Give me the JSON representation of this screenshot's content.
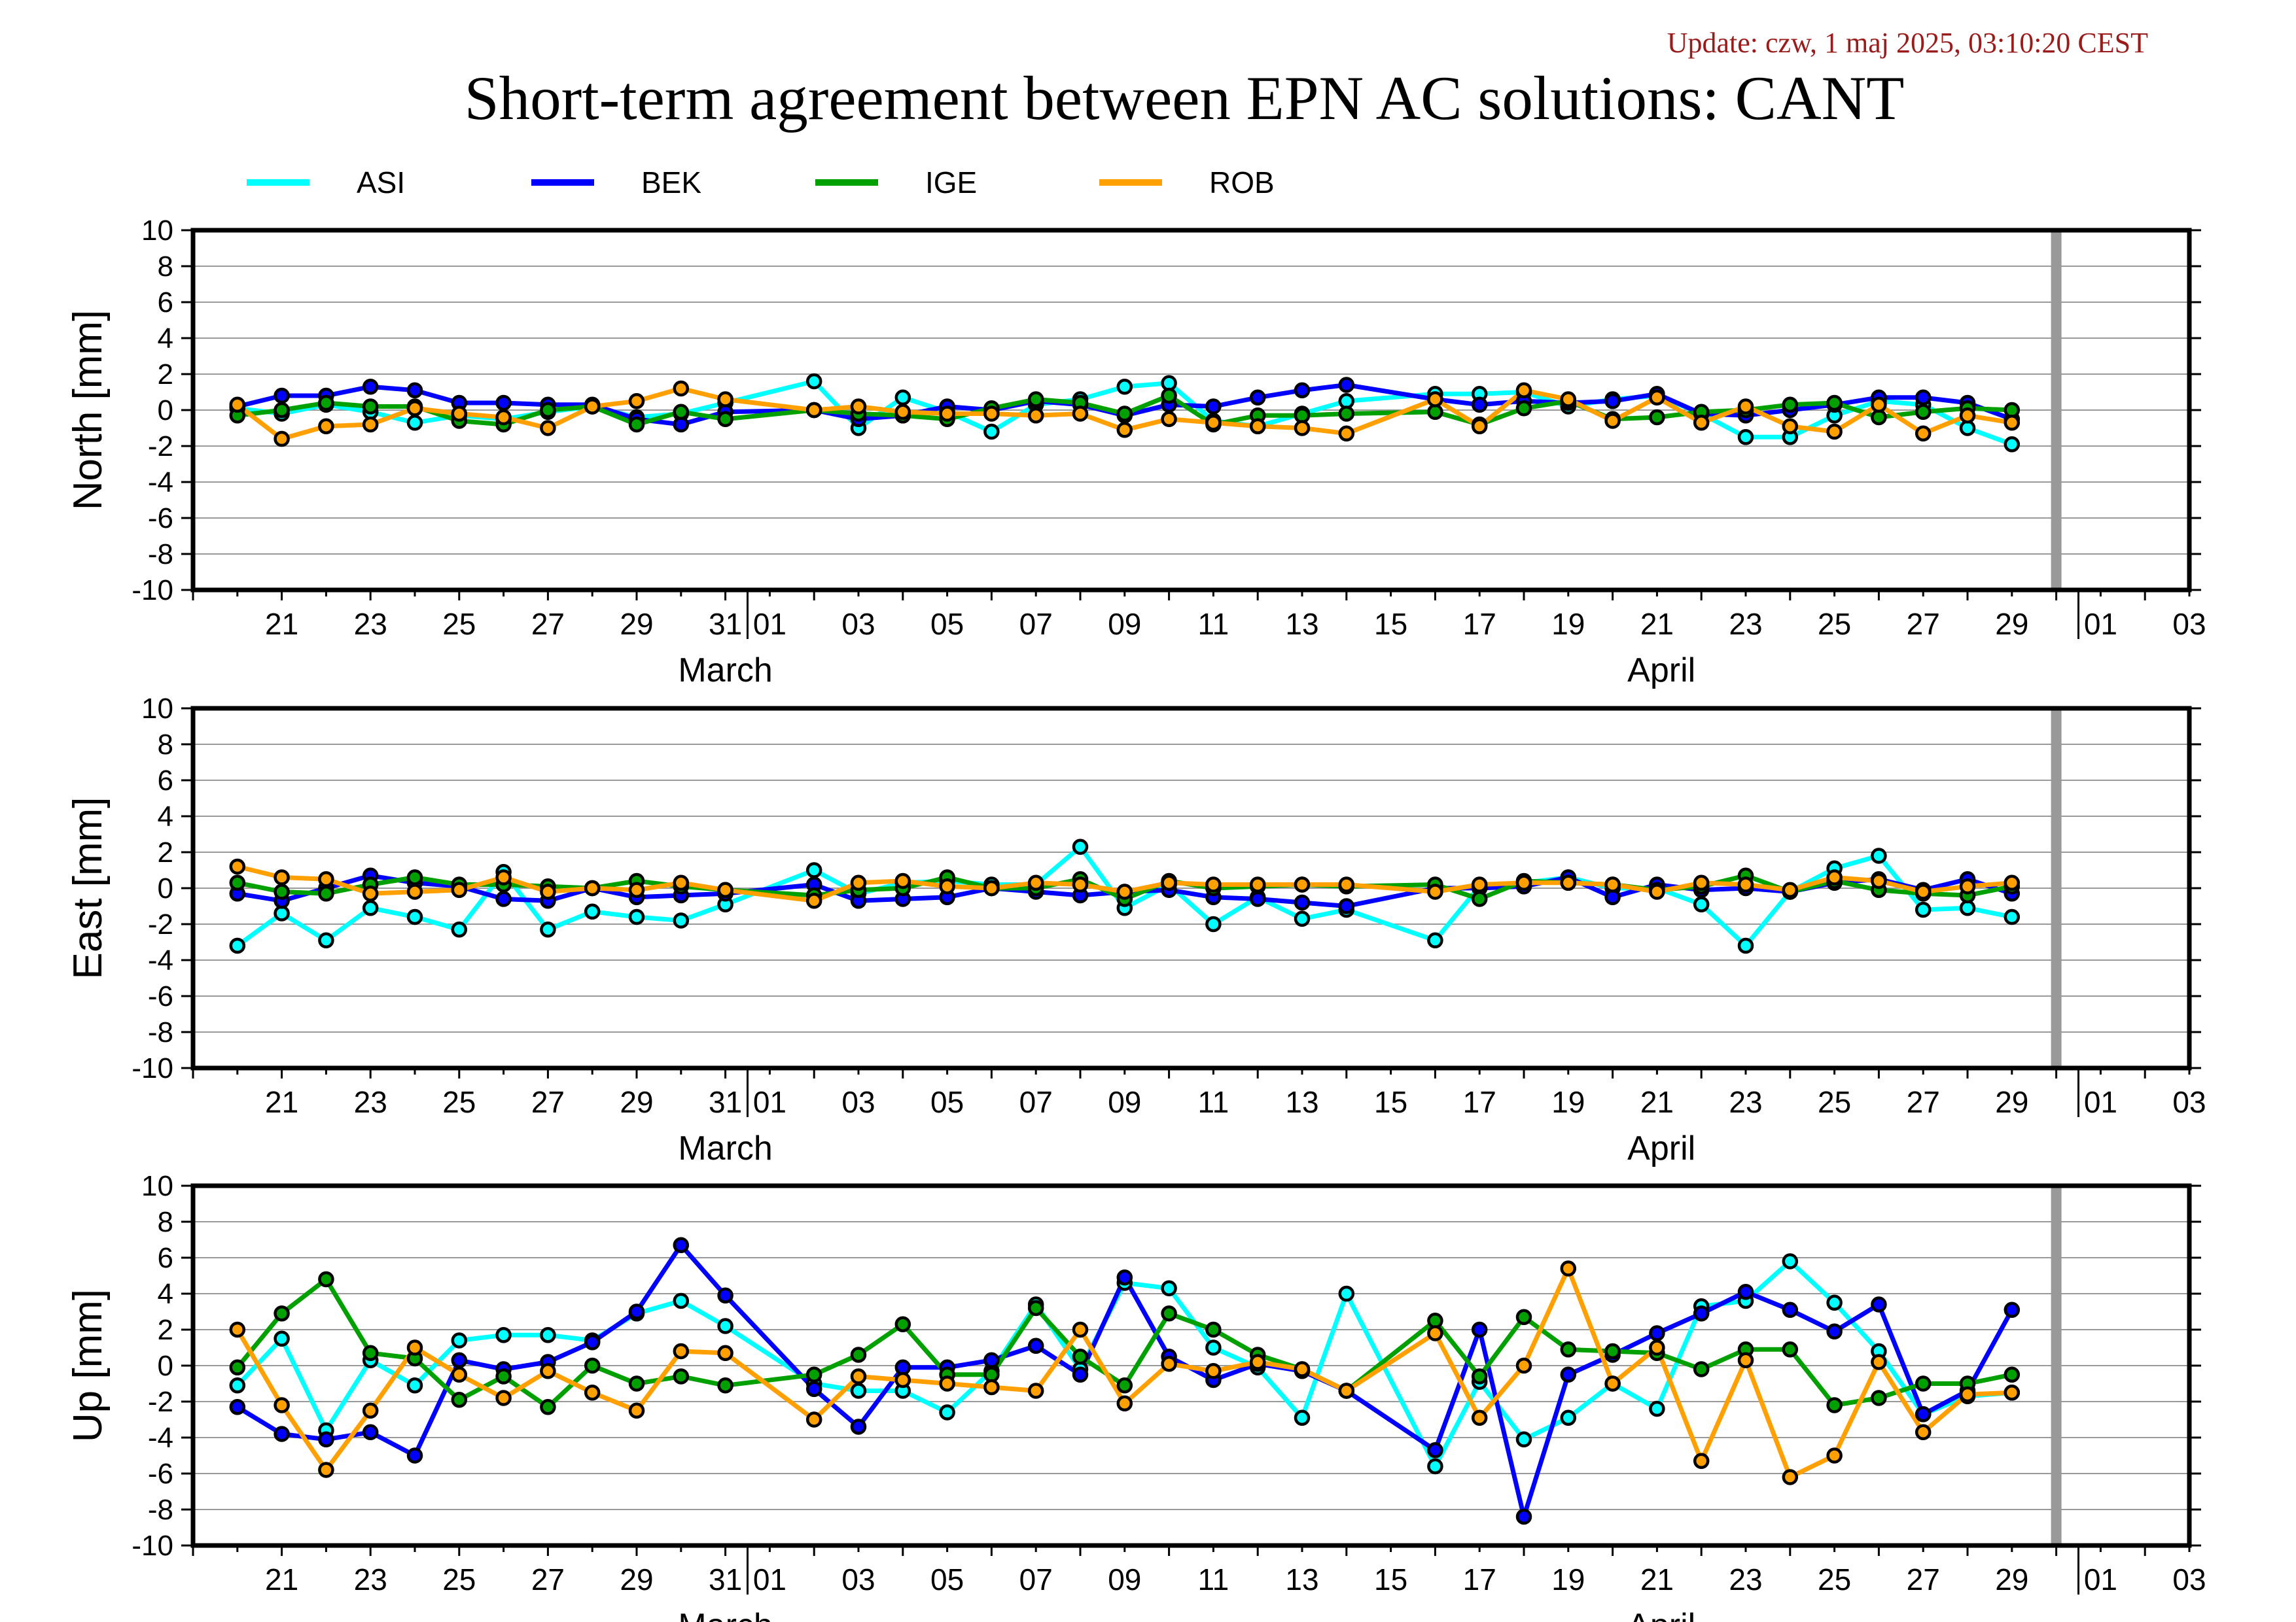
{
  "update_text": "Update: czw, 1 maj 2025, 03:10:20 CEST",
  "colors": {
    "ASI": "#00ffff",
    "BEK": "#0000ff",
    "IGE": "#00a000",
    "ROB": "#ffa000",
    "update_text": "#9b1b1b",
    "today_marker": "#999999",
    "grid": "#999999"
  },
  "chart_data": {
    "type": "line",
    "title": "Short-term agreement between EPN AC solutions: CANT",
    "legend": [
      "ASI",
      "BEK",
      "IGE",
      "ROB"
    ],
    "legend_placement": "top",
    "x_range": [
      "2025-03-19",
      "2025-05-04"
    ],
    "x_tick_labels": [
      "21",
      "23",
      "25",
      "27",
      "29",
      "31",
      "01",
      "03",
      "05",
      "07",
      "09",
      "11",
      "13",
      "15",
      "17",
      "19",
      "21",
      "23",
      "25",
      "27",
      "29",
      "01",
      "03"
    ],
    "x_month_labels": [
      "March",
      "April"
    ],
    "today_marker": "2025-04-30",
    "grid": true,
    "x": [
      "2025-03-20",
      "2025-03-21",
      "2025-03-22",
      "2025-03-23",
      "2025-03-24",
      "2025-03-25",
      "2025-03-26",
      "2025-03-27",
      "2025-03-28",
      "2025-03-29",
      "2025-03-30",
      "2025-03-31",
      "2025-04-02",
      "2025-04-03",
      "2025-04-04",
      "2025-04-05",
      "2025-04-06",
      "2025-04-07",
      "2025-04-08",
      "2025-04-09",
      "2025-04-10",
      "2025-04-11",
      "2025-04-12",
      "2025-04-13",
      "2025-04-14",
      "2025-04-16",
      "2025-04-17",
      "2025-04-18",
      "2025-04-19",
      "2025-04-20",
      "2025-04-21",
      "2025-04-22",
      "2025-04-23",
      "2025-04-24",
      "2025-04-25",
      "2025-04-26",
      "2025-04-27",
      "2025-04-28",
      "2025-04-29"
    ],
    "panels": [
      {
        "ylabel": "North [mm]",
        "ylim": [
          -10,
          10
        ],
        "yticks": [
          10,
          8,
          6,
          4,
          2,
          0,
          -2,
          -4,
          -6,
          -8,
          -10
        ],
        "series": [
          {
            "name": "ASI",
            "values": [
              0.1,
              -0.2,
              0.3,
              -0.1,
              -0.7,
              -0.3,
              -0.5,
              -0.1,
              0.2,
              -0.4,
              -0.2,
              0.4,
              1.6,
              -1.0,
              0.7,
              -0.1,
              -1.2,
              0.3,
              0.6,
              1.3,
              1.5,
              -0.6,
              -0.9,
              -0.2,
              0.5,
              0.9,
              0.9,
              1.0,
              0.2,
              0.6,
              0.8,
              -0.2,
              -1.5,
              -1.5,
              -0.3,
              0.5,
              0.3,
              -1.0,
              -1.9
            ]
          },
          {
            "name": "BEK",
            "values": [
              0.2,
              0.8,
              0.8,
              1.3,
              1.1,
              0.4,
              0.4,
              0.3,
              0.3,
              -0.5,
              -0.8,
              -0.1,
              0.0,
              -0.5,
              -0.3,
              0.2,
              0.0,
              0.5,
              0.3,
              -0.3,
              0.3,
              0.2,
              0.7,
              1.1,
              1.4,
              0.6,
              0.3,
              0.5,
              0.4,
              0.5,
              0.9,
              -0.2,
              -0.3,
              0.0,
              0.3,
              0.7,
              0.7,
              0.4,
              -0.5
            ]
          },
          {
            "name": "IGE",
            "values": [
              -0.3,
              0.0,
              0.4,
              0.2,
              0.2,
              -0.6,
              -0.8,
              0.0,
              0.2,
              -0.8,
              -0.1,
              -0.5,
              0.0,
              -0.2,
              -0.3,
              -0.5,
              0.1,
              0.6,
              0.4,
              -0.2,
              0.8,
              -0.8,
              -0.3,
              -0.3,
              -0.2,
              -0.1,
              -0.8,
              0.1,
              0.5,
              -0.5,
              -0.4,
              -0.1,
              0.0,
              0.3,
              0.4,
              -0.4,
              -0.1,
              0.1,
              0.0
            ]
          },
          {
            "name": "ROB",
            "values": [
              0.3,
              -1.6,
              -0.9,
              -0.8,
              0.1,
              -0.2,
              -0.4,
              -1.0,
              0.2,
              0.5,
              1.2,
              0.6,
              0.0,
              0.2,
              -0.1,
              -0.2,
              -0.2,
              -0.3,
              -0.2,
              -1.1,
              -0.5,
              -0.7,
              -0.9,
              -1.0,
              -1.3,
              0.6,
              -0.9,
              1.1,
              0.6,
              -0.6,
              0.7,
              -0.7,
              0.2,
              -0.9,
              -1.2,
              0.3,
              -1.3,
              -0.3,
              -0.7
            ]
          }
        ]
      },
      {
        "ylabel": "East [mm]",
        "ylim": [
          -10,
          10
        ],
        "yticks": [
          10,
          8,
          6,
          4,
          2,
          0,
          -2,
          -4,
          -6,
          -8,
          -10
        ],
        "series": [
          {
            "name": "ASI",
            "values": [
              -3.2,
              -1.4,
              -2.9,
              -1.1,
              -1.6,
              -2.3,
              0.9,
              -2.3,
              -1.3,
              -1.6,
              -1.8,
              -0.9,
              1.0,
              -0.3,
              0.3,
              0.4,
              0.2,
              0.2,
              2.3,
              -1.1,
              0.2,
              -2.0,
              -0.5,
              -1.7,
              -1.2,
              -2.9,
              0.1,
              0.3,
              0.6,
              0.0,
              0.0,
              -0.9,
              -3.2,
              -0.2,
              1.1,
              1.8,
              -1.2,
              -1.1,
              -1.6
            ]
          },
          {
            "name": "BEK",
            "values": [
              -0.3,
              -0.7,
              0.0,
              0.7,
              0.3,
              0.1,
              -0.6,
              -0.7,
              0.0,
              -0.5,
              -0.4,
              -0.3,
              0.2,
              -0.7,
              -0.6,
              -0.5,
              0.0,
              -0.2,
              -0.4,
              -0.2,
              -0.1,
              -0.5,
              -0.6,
              -0.8,
              -1.0,
              0.0,
              0.0,
              0.1,
              0.6,
              -0.5,
              0.2,
              -0.1,
              0.0,
              -0.2,
              0.3,
              0.5,
              -0.1,
              0.5,
              -0.3
            ]
          },
          {
            "name": "IGE",
            "values": [
              0.3,
              -0.2,
              -0.3,
              0.2,
              0.6,
              0.2,
              0.2,
              0.1,
              0.0,
              0.4,
              0.1,
              -0.1,
              -0.4,
              -0.1,
              0.0,
              0.6,
              0.0,
              0.0,
              0.5,
              -0.6,
              0.4,
              0.0,
              0.1,
              0.2,
              0.1,
              0.2,
              -0.6,
              0.4,
              0.3,
              0.2,
              -0.1,
              0.1,
              0.7,
              -0.2,
              0.4,
              -0.1,
              -0.3,
              -0.4,
              0.1
            ]
          },
          {
            "name": "ROB",
            "values": [
              1.2,
              0.6,
              0.5,
              -0.3,
              -0.2,
              -0.1,
              0.6,
              -0.2,
              0.0,
              -0.1,
              0.3,
              -0.1,
              -0.7,
              0.3,
              0.4,
              0.1,
              0.0,
              0.3,
              0.2,
              -0.2,
              0.3,
              0.2,
              0.2,
              0.2,
              0.2,
              -0.2,
              0.2,
              0.3,
              0.3,
              0.2,
              -0.2,
              0.3,
              0.2,
              -0.1,
              0.6,
              0.4,
              -0.2,
              0.1,
              0.3
            ]
          }
        ]
      },
      {
        "ylabel": "Up [mm]",
        "ylim": [
          -10,
          10
        ],
        "yticks": [
          10,
          8,
          6,
          4,
          2,
          0,
          -2,
          -4,
          -6,
          -8,
          -10
        ],
        "series": [
          {
            "name": "ASI",
            "values": [
              -1.1,
              1.5,
              -3.6,
              0.3,
              -1.1,
              1.4,
              1.7,
              1.7,
              1.4,
              2.9,
              3.6,
              2.2,
              -1.0,
              -1.4,
              -1.4,
              -2.6,
              -0.3,
              3.4,
              -0.2,
              4.6,
              4.3,
              1.0,
              -0.1,
              -2.9,
              4.0,
              -5.6,
              -0.9,
              -4.1,
              -2.9,
              -1.0,
              -2.4,
              3.3,
              3.6,
              5.8,
              3.5,
              0.8,
              -2.7,
              -1.7,
              -1.5
            ]
          },
          {
            "name": "BEK",
            "values": [
              -2.3,
              -3.8,
              -4.1,
              -3.7,
              -5.0,
              0.3,
              -0.2,
              0.2,
              1.3,
              3.0,
              6.7,
              3.9,
              -1.3,
              -3.4,
              -0.1,
              -0.1,
              0.3,
              1.1,
              -0.5,
              4.9,
              0.5,
              -0.8,
              0.1,
              -0.3,
              -1.4,
              -4.7,
              2.0,
              -8.4,
              -0.5,
              0.6,
              1.8,
              2.9,
              4.1,
              3.1,
              1.9,
              3.4,
              -2.7,
              -1.4,
              3.1
            ]
          },
          {
            "name": "IGE",
            "values": [
              -0.1,
              2.9,
              4.8,
              0.7,
              0.4,
              -1.9,
              -0.6,
              -2.3,
              0.0,
              -1.0,
              -0.6,
              -1.1,
              -0.5,
              0.6,
              2.3,
              -0.5,
              -0.5,
              3.2,
              0.5,
              -1.1,
              2.9,
              2.0,
              0.6,
              -0.2,
              -1.4,
              2.5,
              -0.6,
              2.7,
              0.9,
              0.8,
              0.7,
              -0.2,
              0.9,
              0.9,
              -2.2,
              -1.8,
              -1.0,
              -1.0,
              -0.5
            ]
          },
          {
            "name": "ROB",
            "values": [
              2.0,
              -2.2,
              -5.8,
              -2.5,
              1.0,
              -0.5,
              -1.8,
              -0.3,
              -1.5,
              -2.5,
              0.8,
              0.7,
              -3.0,
              -0.6,
              -0.8,
              -1.0,
              -1.2,
              -1.4,
              2.0,
              -2.1,
              0.1,
              -0.3,
              0.2,
              -0.2,
              -1.4,
              1.8,
              -2.9,
              0.0,
              5.4,
              -1.0,
              1.0,
              -5.3,
              0.3,
              -6.2,
              -5.0,
              0.2,
              -3.7,
              -1.6,
              -1.5
            ]
          }
        ]
      }
    ]
  }
}
